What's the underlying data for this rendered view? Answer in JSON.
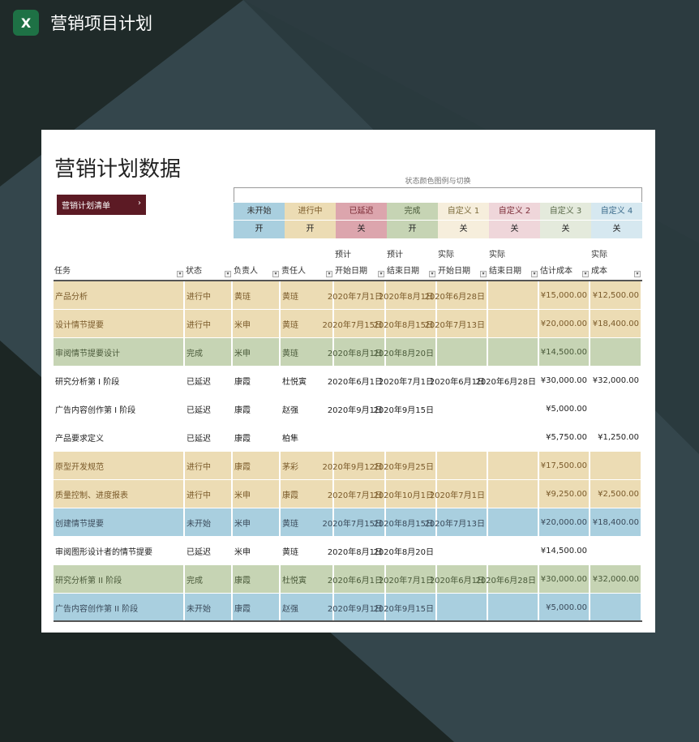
{
  "app": {
    "title": "营销项目计划",
    "icon": "excel-icon"
  },
  "sheet": {
    "title": "营销计划数据",
    "list_button": "营销计划清单",
    "list_chevron": "›",
    "legend_title": "状态颜色图例与切换"
  },
  "legend": [
    {
      "name": "未开始",
      "toggle": "开",
      "color": "#a9cfdf",
      "text": "#333"
    },
    {
      "name": "进行中",
      "toggle": "开",
      "color": "#ecdcb4",
      "text": "#7a5a2a"
    },
    {
      "name": "已延迟",
      "toggle": "关",
      "color": "#dca5ad",
      "text": "#7a2a35"
    },
    {
      "name": "完成",
      "toggle": "开",
      "color": "#c6d4b4",
      "text": "#4a5a3a"
    },
    {
      "name": "自定义 1",
      "toggle": "关",
      "color": "#f6eedc",
      "text": "#7a6a3a"
    },
    {
      "name": "自定义 2",
      "toggle": "关",
      "color": "#efd6da",
      "text": "#7a2a35"
    },
    {
      "name": "自定义 3",
      "toggle": "关",
      "color": "#e4eadc",
      "text": "#5a6a4a"
    },
    {
      "name": "自定义 4",
      "toggle": "关",
      "color": "#d6e8f0",
      "text": "#3a6a8a"
    }
  ],
  "columns": [
    {
      "top": "",
      "label": "任务"
    },
    {
      "top": "",
      "label": "状态"
    },
    {
      "top": "",
      "label": "负责人"
    },
    {
      "top": "",
      "label": "责任人"
    },
    {
      "top": "预计",
      "label": "开始日期"
    },
    {
      "top": "预计",
      "label": "结束日期"
    },
    {
      "top": "实际",
      "label": "开始日期"
    },
    {
      "top": "实际",
      "label": "结束日期"
    },
    {
      "top": "",
      "label": "估计成本"
    },
    {
      "top": "实际",
      "label": "成本"
    }
  ],
  "rows": [
    [
      "产品分析",
      "进行中",
      "黄琏",
      "黄琏",
      "2020年7月1日",
      "2020年8月1日",
      "2020年6月28日",
      "",
      "¥15,000.00",
      "¥12,500.00"
    ],
    [
      "设计情节提要",
      "进行中",
      "米申",
      "黄琏",
      "2020年7月15日",
      "2020年8月15日",
      "2020年7月13日",
      "",
      "¥20,000.00",
      "¥18,400.00"
    ],
    [
      "审阅情节提要设计",
      "完成",
      "米申",
      "黄琏",
      "2020年8月1日",
      "2020年8月20日",
      "",
      "",
      "¥14,500.00",
      ""
    ],
    [
      "研究分析第 I 阶段",
      "已延迟",
      "康霞",
      "杜悦寅",
      "2020年6月1日",
      "2020年7月1日",
      "2020年6月1日",
      "2020年6月28日",
      "¥30,000.00",
      "¥32,000.00"
    ],
    [
      "广告内容创作第 I 阶段",
      "已延迟",
      "康霞",
      "赵强",
      "2020年9月1日",
      "2020年9月15日",
      "",
      "",
      "¥5,000.00",
      ""
    ],
    [
      "产品要求定义",
      "已延迟",
      "康霞",
      "柏隼",
      "",
      "",
      "",
      "",
      "¥5,750.00",
      "¥1,250.00"
    ],
    [
      "原型开发规范",
      "进行中",
      "康霞",
      "茅彩",
      "2020年9月12日",
      "2020年9月25日",
      "",
      "",
      "¥17,500.00",
      ""
    ],
    [
      "质量控制、进度报表",
      "进行中",
      "米申",
      "康霞",
      "2020年7月1日",
      "2020年10月1日",
      "2020年7月1日",
      "",
      "¥9,250.00",
      "¥2,500.00"
    ],
    [
      "创建情节提要",
      "未开始",
      "米申",
      "黄琏",
      "2020年7月15日",
      "2020年8月15日",
      "2020年7月13日",
      "",
      "¥20,000.00",
      "¥18,400.00"
    ],
    [
      "审阅图形设计者的情节提要",
      "已延迟",
      "米申",
      "黄琏",
      "2020年8月1日",
      "2020年8月20日",
      "",
      "",
      "¥14,500.00",
      ""
    ],
    [
      "研究分析第 II 阶段",
      "完成",
      "康霞",
      "杜悦寅",
      "2020年6月1日",
      "2020年7月1日",
      "2020年6月1日",
      "2020年6月28日",
      "¥30,000.00",
      "¥32,000.00"
    ],
    [
      "广告内容创作第 II 阶段",
      "未开始",
      "康霞",
      "赵强",
      "2020年9月1日",
      "2020年9月15日",
      "",
      "",
      "¥5,000.00",
      ""
    ]
  ]
}
